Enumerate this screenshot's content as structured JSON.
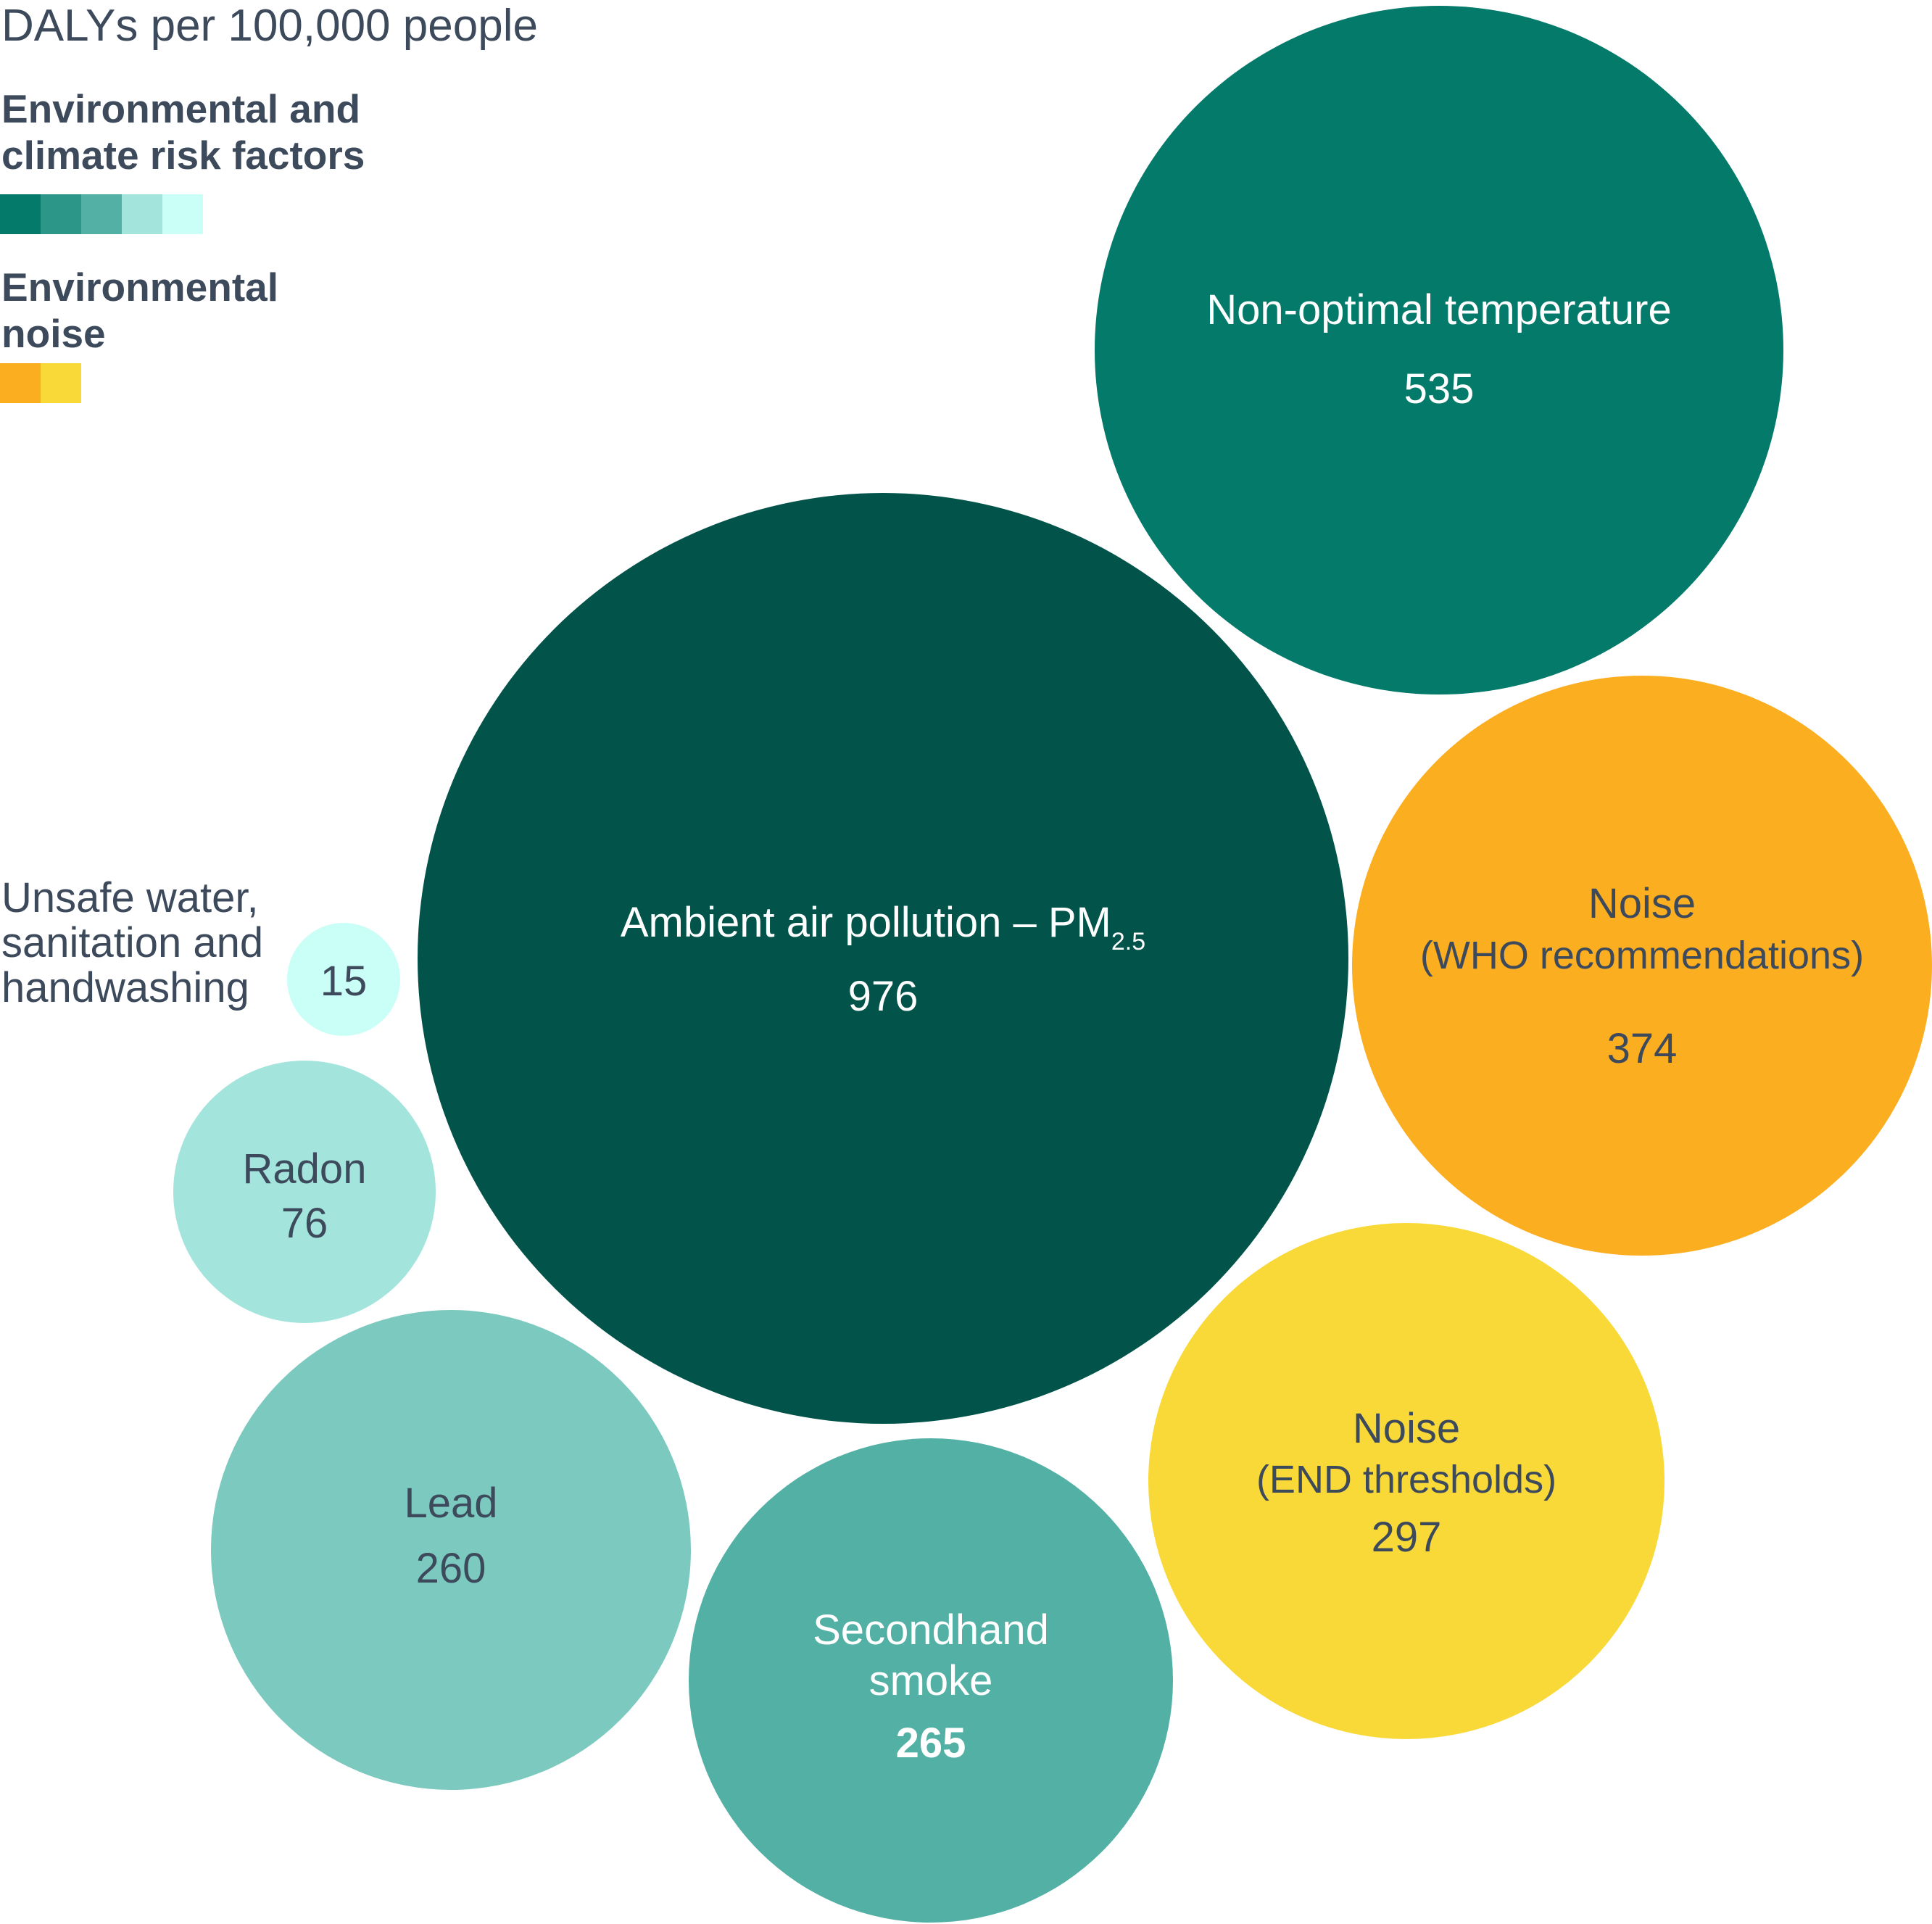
{
  "unit_label": "DALYs per 100,000 people",
  "legend": {
    "groups": [
      {
        "title_lines": [
          "Environmental and",
          "climate risk factors"
        ],
        "colors": [
          "#037a6a",
          "#2c9688",
          "#52b0a4",
          "#a3e5dc",
          "#c9fff6"
        ]
      },
      {
        "title_lines": [
          "Environmental",
          "noise"
        ],
        "colors": [
          "#fcae21",
          "#f9d937"
        ]
      }
    ]
  },
  "chart_data": {
    "type": "bubble",
    "title": "",
    "unit": "DALYs per 100,000 people",
    "bubbles": [
      {
        "name": "Ambient air pollution – PM",
        "subscript": "2.5",
        "value": 976,
        "group": "Environmental and climate risk factors",
        "color": "#02534a",
        "text_color": "#ffffff",
        "value_bold": false
      },
      {
        "name": "Non-optimal temperature",
        "value": 535,
        "group": "Environmental and climate risk factors",
        "color": "#037a6a",
        "text_color": "#ffffff",
        "value_bold": false
      },
      {
        "name": "Noise",
        "name_line2": "(WHO recommendations)",
        "value": 374,
        "group": "Environmental noise",
        "color": "#fcae21",
        "text_color": "#3d4a5c",
        "value_bold": false
      },
      {
        "name": "Noise",
        "name_line2": "(END thresholds)",
        "value": 297,
        "group": "Environmental noise",
        "color": "#f9d937",
        "text_color": "#3d4a5c",
        "value_bold": false
      },
      {
        "name": "Secondhand",
        "name_line2": "smoke",
        "value": 265,
        "group": "Environmental and climate risk factors",
        "color": "#52b0a4",
        "text_color": "#ffffff",
        "value_bold": true
      },
      {
        "name": "Lead",
        "value": 260,
        "group": "Environmental and climate risk factors",
        "color": "#7bc9bf",
        "text_color": "#3d4a5c",
        "value_bold": false
      },
      {
        "name": "Radon",
        "value": 76,
        "group": "Environmental and climate risk factors",
        "color": "#a3e5dc",
        "text_color": "#3d4a5c",
        "value_bold": false
      },
      {
        "name": "Unsafe water, sanitation and handwashing",
        "name_lines": [
          "Unsafe water,",
          "sanitation and",
          "handwashing"
        ],
        "value": 15,
        "group": "Environmental and climate risk factors",
        "color": "#c9fff6",
        "text_color": "#3d4a5c",
        "value_bold": false,
        "label_outside": true
      }
    ]
  }
}
